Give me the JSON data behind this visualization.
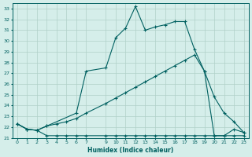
{
  "xlabel": "Humidex (Indice chaleur)",
  "bg_color": "#d5eeea",
  "grid_color": "#b0d0c8",
  "line_color": "#006060",
  "xlim": [
    -0.5,
    23.5
  ],
  "ylim": [
    21,
    33.5
  ],
  "yticks": [
    21,
    22,
    23,
    24,
    25,
    26,
    27,
    28,
    29,
    30,
    31,
    32,
    33
  ],
  "xticks": [
    0,
    1,
    2,
    3,
    4,
    5,
    6,
    7,
    9,
    10,
    11,
    12,
    13,
    14,
    15,
    16,
    17,
    18,
    19,
    20,
    21,
    22,
    23
  ],
  "line1_x": [
    0,
    1,
    2,
    3,
    4,
    5,
    6,
    7,
    9,
    10,
    11,
    12,
    13,
    14,
    15,
    16,
    17,
    18,
    19,
    20,
    21,
    22,
    23
  ],
  "line1_y": [
    22.3,
    21.8,
    21.7,
    21.2,
    21.2,
    21.2,
    21.2,
    21.2,
    21.2,
    21.2,
    21.2,
    21.2,
    21.2,
    21.2,
    21.2,
    21.2,
    21.2,
    21.2,
    21.2,
    21.2,
    21.2,
    21.2,
    21.2
  ],
  "line2_x": [
    0,
    1,
    2,
    3,
    4,
    5,
    6,
    7,
    9,
    10,
    11,
    12,
    13,
    14,
    15,
    16,
    17,
    18,
    19,
    20,
    21,
    22,
    23
  ],
  "line2_y": [
    22.3,
    21.8,
    21.7,
    22.1,
    22.3,
    22.5,
    22.8,
    23.3,
    24.2,
    24.7,
    25.2,
    25.7,
    26.2,
    26.7,
    27.2,
    27.7,
    28.2,
    28.7,
    27.2,
    24.8,
    23.3,
    22.5,
    21.5
  ],
  "line3_x": [
    0,
    1,
    2,
    3,
    6,
    7,
    9,
    10,
    11,
    12,
    13,
    14,
    15,
    16,
    17,
    18,
    19,
    20,
    21,
    22,
    23
  ],
  "line3_y": [
    22.3,
    21.8,
    21.7,
    22.1,
    23.3,
    27.2,
    27.5,
    30.3,
    31.2,
    33.2,
    31.0,
    31.3,
    31.5,
    31.8,
    31.8,
    29.2,
    27.2,
    21.2,
    21.2,
    21.8,
    21.5
  ]
}
